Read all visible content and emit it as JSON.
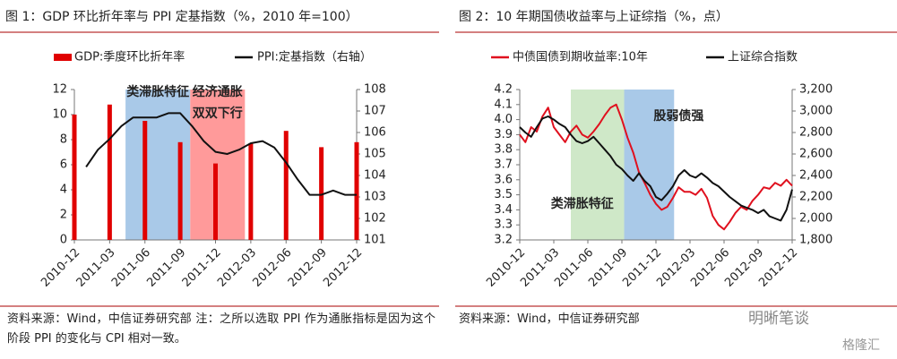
{
  "chart_data": [
    {
      "type": "bar_line",
      "title": "图 1：GDP 环比折年率与 PPI 定基指数（%，2010 年=100）",
      "categories": [
        "2010-12",
        null,
        null,
        "2011-03",
        null,
        null,
        "2011-06",
        null,
        null,
        "2011-09",
        null,
        null,
        "2011-12",
        null,
        null,
        "2012-03",
        null,
        null,
        "2012-06",
        null,
        null,
        "2012-09",
        null,
        null,
        "2012-12"
      ],
      "series": [
        {
          "name": "GDP:季度环比折年率",
          "type": "bar",
          "color": "#e00000",
          "values": [
            10,
            null,
            null,
            10.8,
            null,
            null,
            9.5,
            null,
            null,
            7.8,
            null,
            null,
            6.1,
            null,
            null,
            7.7,
            null,
            null,
            8.7,
            null,
            null,
            7.4,
            null,
            null,
            7.8
          ]
        },
        {
          "name": "PPI:定基指数（右轴）",
          "type": "line",
          "axis": "y2",
          "color": "#111111",
          "values": [
            null,
            104.4,
            105.2,
            105.7,
            106.3,
            106.7,
            106.7,
            106.7,
            106.9,
            106.9,
            106.3,
            105.6,
            105.1,
            105.0,
            105.2,
            105.5,
            105.6,
            105.3,
            104.6,
            103.8,
            103.1,
            103.1,
            103.3,
            103.1,
            103.1
          ]
        }
      ],
      "ylim": [
        0,
        12
      ],
      "yticks": [
        0,
        2,
        4,
        6,
        8,
        10,
        12
      ],
      "y2lim": [
        101,
        108
      ],
      "y2ticks": [
        101,
        102,
        103,
        104,
        105,
        106,
        107,
        108
      ],
      "spans": [
        {
          "label": [
            "类滞胀特征"
          ],
          "from": 4.35,
          "to": 9.85,
          "color": "#a9c9e8"
        },
        {
          "label": [
            "经济通胀",
            "双双下行"
          ],
          "from": 9.85,
          "to": 14.5,
          "color": "#ff9a9a"
        }
      ],
      "note": "资料来源：Wind，中信证券研究部 注：之所以选取 PPI 作为通胀指标是因为这个阶段 PPI 的变化与 CPI 相对一致。"
    },
    {
      "type": "line",
      "title": "图 2：10 年期国债收益率与上证综指（%，点）",
      "categories": [
        "2010-12",
        null,
        null,
        null,
        null,
        null,
        "2011-03",
        null,
        null,
        null,
        null,
        null,
        "2011-06",
        null,
        null,
        null,
        null,
        null,
        "2011-09",
        null,
        null,
        null,
        null,
        null,
        "2011-12",
        null,
        null,
        null,
        null,
        null,
        "2012-03",
        null,
        null,
        null,
        null,
        null,
        "2012-06",
        null,
        null,
        null,
        null,
        null,
        "2012-09",
        null,
        null,
        null,
        null,
        null,
        "2012-12"
      ],
      "series": [
        {
          "name": "中债国债到期收益率:10年",
          "type": "line",
          "color": "#e0101e",
          "values": [
            3.9,
            3.85,
            3.95,
            3.92,
            4.02,
            4.08,
            3.95,
            3.9,
            3.85,
            3.92,
            3.96,
            3.9,
            3.88,
            3.92,
            3.97,
            4.03,
            4.08,
            4.1,
            4.0,
            3.88,
            3.78,
            3.65,
            3.58,
            3.5,
            3.44,
            3.4,
            3.42,
            3.48,
            3.55,
            3.52,
            3.52,
            3.5,
            3.54,
            3.48,
            3.36,
            3.3,
            3.27,
            3.32,
            3.38,
            3.42,
            3.4,
            3.46,
            3.5,
            3.55,
            3.54,
            3.58,
            3.56,
            3.6,
            3.56
          ]
        },
        {
          "name": "上证综合指数",
          "type": "line",
          "axis": "y2",
          "color": "#111111",
          "values": [
            2850,
            2800,
            2760,
            2850,
            2930,
            2950,
            2920,
            2880,
            2850,
            2780,
            2720,
            2700,
            2720,
            2760,
            2700,
            2640,
            2580,
            2500,
            2460,
            2400,
            2350,
            2420,
            2350,
            2300,
            2200,
            2170,
            2230,
            2300,
            2400,
            2450,
            2400,
            2380,
            2420,
            2380,
            2330,
            2300,
            2250,
            2200,
            2160,
            2120,
            2100,
            2080,
            2050,
            2080,
            2020,
            2000,
            1980,
            2080,
            2270
          ]
        }
      ],
      "ylim": [
        3.2,
        4.2
      ],
      "yticks": [
        3.2,
        3.3,
        3.4,
        3.5,
        3.6,
        3.7,
        3.8,
        3.9,
        {
          "value": 4,
          "label": "4.0"
        },
        4.1,
        4.2
      ],
      "y2lim": [
        1800,
        3200
      ],
      "y2ticks": [
        {
          "value": 1800,
          "label": "1,800"
        },
        {
          "value": 2000,
          "label": "2,000"
        },
        {
          "value": 2200,
          "label": "2,200"
        },
        {
          "value": 2400,
          "label": "2,400"
        },
        {
          "value": 2600,
          "label": "2,600"
        },
        {
          "value": 2800,
          "label": "2,800"
        },
        {
          "value": 3000,
          "label": "3,000"
        },
        {
          "value": 3200,
          "label": "3,200"
        }
      ],
      "spans": [
        {
          "label": [
            "类滞胀特征"
          ],
          "from": 9,
          "to": 18.4,
          "color": "#cfe8c8"
        },
        {
          "label": [
            "股弱债强"
          ],
          "from": 18.4,
          "to": 27.2,
          "color": "#a9c9e8"
        }
      ],
      "note": "资料来源：Wind，中信证券研究部"
    }
  ],
  "watermark": [
    "明晰笔谈",
    "格隆汇"
  ]
}
